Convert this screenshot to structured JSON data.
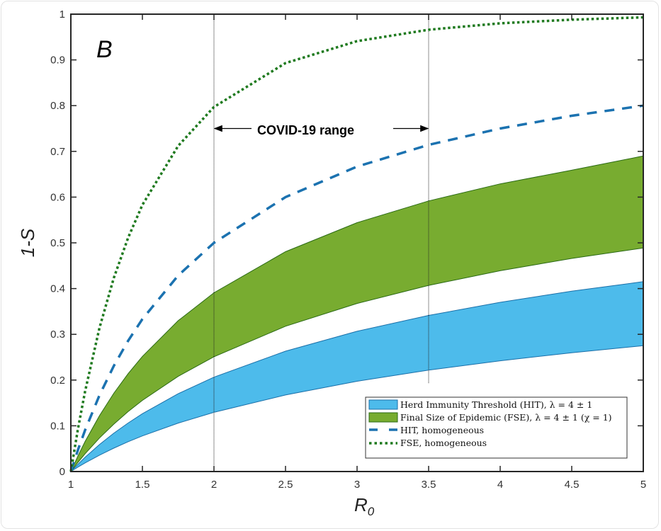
{
  "chart_data": {
    "type": "line",
    "panel_label": "B",
    "xlabel": "R",
    "xlabel_subscript": "0",
    "ylabel": "1-S",
    "xlim": [
      1,
      5
    ],
    "ylim": [
      0,
      1
    ],
    "x_ticks": [
      "1",
      "1.5",
      "2",
      "2.5",
      "3",
      "3.5",
      "4",
      "4.5",
      "5"
    ],
    "y_ticks": [
      "0",
      "0.1",
      "0.2",
      "0.3",
      "0.4",
      "0.5",
      "0.6",
      "0.7",
      "0.8",
      "0.9",
      "1"
    ],
    "grid": false,
    "legend_position": "bottom-right",
    "annotation": {
      "text": "COVID-19 range",
      "x_range": [
        2,
        3.5
      ],
      "y": 0.75
    },
    "x": [
      1,
      1.05,
      1.1,
      1.2,
      1.3,
      1.4,
      1.5,
      1.75,
      2,
      2.5,
      3,
      3.5,
      4,
      4.5,
      5
    ],
    "bands": [
      {
        "name": "Herd Immunity Threshold (HIT), λ = 4 ± 1",
        "color": "#4dbbeb",
        "edge_color": "#1a6fa8",
        "lower": [
          0,
          0.0097,
          0.0189,
          0.0358,
          0.0511,
          0.0651,
          0.0779,
          0.1059,
          0.1294,
          0.1674,
          0.1973,
          0.2216,
          0.2421,
          0.2598,
          0.2752
        ],
        "upper": [
          0,
          0.0161,
          0.0313,
          0.059,
          0.0837,
          0.1061,
          0.1264,
          0.1702,
          0.2063,
          0.2632,
          0.3066,
          0.3414,
          0.37,
          0.3943,
          0.4152
        ]
      },
      {
        "name": "Final Size of Epidemic (FSE), λ = 4 ± 1 (χ = 1)",
        "color": "#78ac30",
        "edge_color": "#2a6a14",
        "lower": [
          0,
          0.0201,
          0.039,
          0.0732,
          0.1036,
          0.1309,
          0.1556,
          0.2081,
          0.251,
          0.3176,
          0.3675,
          0.4069,
          0.439,
          0.4659,
          0.4889
        ],
        "upper": [
          0,
          0.0343,
          0.0659,
          0.1222,
          0.171,
          0.2139,
          0.2517,
          0.3298,
          0.3908,
          0.4806,
          0.5441,
          0.5917,
          0.6289,
          0.6589,
          0.69
        ]
      }
    ],
    "series": [
      {
        "name": "HIT, homogeneous",
        "style": "dashed",
        "color": "#1b72b0",
        "values": [
          0,
          0.0476,
          0.0909,
          0.1667,
          0.2308,
          0.2857,
          0.3333,
          0.4286,
          0.5,
          0.6,
          0.6667,
          0.7143,
          0.75,
          0.7778,
          0.8
        ]
      },
      {
        "name": "FSE, homogeneous",
        "style": "dotted",
        "color": "#1f7a1f",
        "values": [
          0,
          0.094,
          0.176,
          0.314,
          0.423,
          0.511,
          0.583,
          0.712,
          0.797,
          0.893,
          0.941,
          0.966,
          0.98,
          0.988,
          0.993
        ]
      }
    ],
    "vertical_lines": [
      2,
      3.5
    ]
  }
}
